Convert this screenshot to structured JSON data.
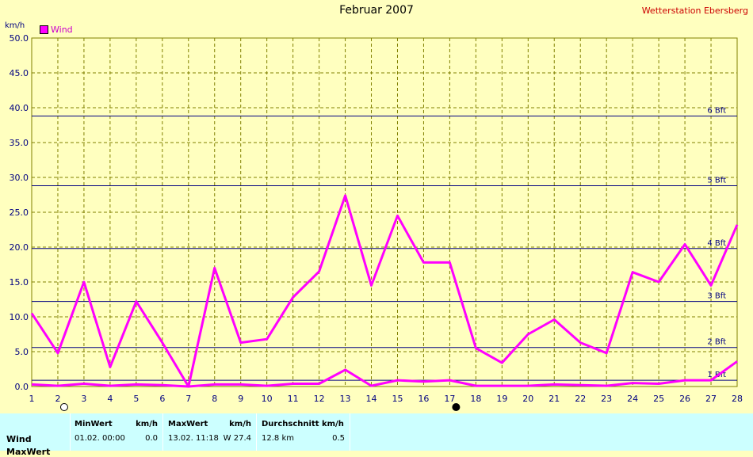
{
  "title": "Februar 2007",
  "station": "Wetterstation Ebersberg",
  "unit": "km/h",
  "legend": {
    "label": "Wind",
    "color": "#ff00ff"
  },
  "chart_data": {
    "type": "line",
    "title": "Februar 2007",
    "ylabel": "km/h",
    "xlabel": "",
    "x": [
      1,
      2,
      3,
      4,
      5,
      6,
      7,
      8,
      9,
      10,
      11,
      12,
      13,
      14,
      15,
      16,
      17,
      18,
      19,
      20,
      21,
      22,
      23,
      24,
      25,
      26,
      27,
      28
    ],
    "ylim": [
      0,
      50
    ],
    "yticks": [
      "0.0",
      "5.0",
      "10.0",
      "15.0",
      "20.0",
      "25.0",
      "30.0",
      "35.0",
      "40.0",
      "45.0",
      "50.0"
    ],
    "grid": true,
    "legend_position": "top-left",
    "series": [
      {
        "name": "Wind",
        "color": "#ff00ff",
        "values": [
          10.5,
          4.8,
          15.0,
          2.8,
          12.2,
          6.3,
          0.0,
          17.0,
          6.3,
          6.8,
          12.8,
          16.5,
          27.4,
          14.5,
          24.5,
          17.8,
          17.8,
          5.5,
          3.4,
          7.5,
          9.6,
          6.3,
          4.8,
          16.4,
          15.0,
          20.4,
          14.5,
          23.2
        ]
      },
      {
        "color": "#ff00ff",
        "values": [
          0.3,
          0.1,
          0.4,
          0.1,
          0.3,
          0.2,
          0.0,
          0.3,
          0.3,
          0.1,
          0.4,
          0.4,
          2.4,
          0.1,
          0.9,
          0.7,
          0.9,
          0.1,
          0.1,
          0.1,
          0.3,
          0.2,
          0.1,
          0.5,
          0.4,
          0.9,
          0.9,
          3.6
        ]
      }
    ],
    "reference_lines": [
      {
        "label": "1 Bft",
        "value": 0.9
      },
      {
        "label": "2 Bft",
        "value": 5.6
      },
      {
        "label": "3 Bft",
        "value": 12.2
      },
      {
        "label": "4 Bft",
        "value": 19.8
      },
      {
        "label": "5 Bft",
        "value": 28.8
      },
      {
        "label": "6 Bft",
        "value": 38.8
      }
    ],
    "moon_phases": [
      {
        "day": 2,
        "phase": "full"
      },
      {
        "day": 17,
        "phase": "new"
      }
    ]
  },
  "stats": {
    "headers": {
      "min": "MinWert",
      "min_unit": "km/h",
      "max": "MaxWert",
      "max_unit": "km/h",
      "avg": "Durchschnitt km/h"
    },
    "rows": [
      {
        "label": "Wind",
        "min_date": "01.02.  00:00",
        "min_val": "0.0",
        "max_date": "13.02.  11:18",
        "max_val": "W 27.4",
        "avg_dist": "12.8 km",
        "avg_val": "0.5"
      }
    ],
    "row2_label": "MaxWert"
  },
  "colors": {
    "background": "#ffffbf",
    "grid": "#808000",
    "bft_line": "#000080",
    "axis_text": "#000080",
    "stats_bg": "#ccffff"
  }
}
